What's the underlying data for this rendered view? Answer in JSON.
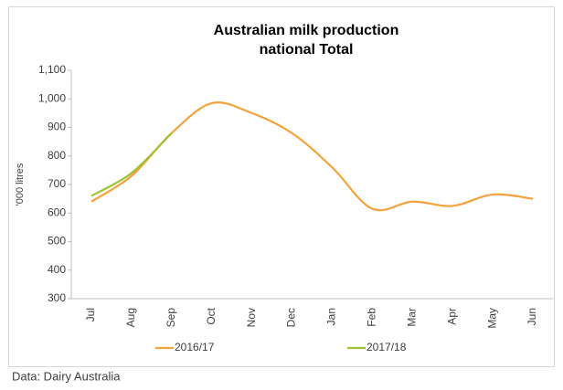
{
  "chart_data": {
    "type": "line",
    "title": "Australian milk production",
    "subtitle": "national Total",
    "y_label": "'000 litres",
    "source": "Data: Dairy Australia",
    "categories": [
      "Jul",
      "Aug",
      "Sep",
      "Oct",
      "Nov",
      "Dec",
      "Jan",
      "Feb",
      "Mar",
      "Apr",
      "May",
      "Jun"
    ],
    "series": [
      {
        "name": "2016/17",
        "color": "#f4a23c",
        "values": [
          640,
          730,
          880,
          985,
          950,
          880,
          760,
          615,
          640,
          625,
          665,
          650
        ]
      },
      {
        "name": "2017/18",
        "color": "#9fc235",
        "values": [
          660,
          740,
          880,
          null,
          null,
          null,
          null,
          null,
          null,
          null,
          null,
          null
        ]
      }
    ],
    "ylim": [
      300,
      1100
    ],
    "yticks": [
      300,
      400,
      500,
      600,
      700,
      800,
      900,
      {
        "value": 1000,
        "label": "1,000"
      },
      {
        "value": 1100,
        "label": "1,100"
      }
    ],
    "grid": false,
    "legend": "bottom"
  }
}
